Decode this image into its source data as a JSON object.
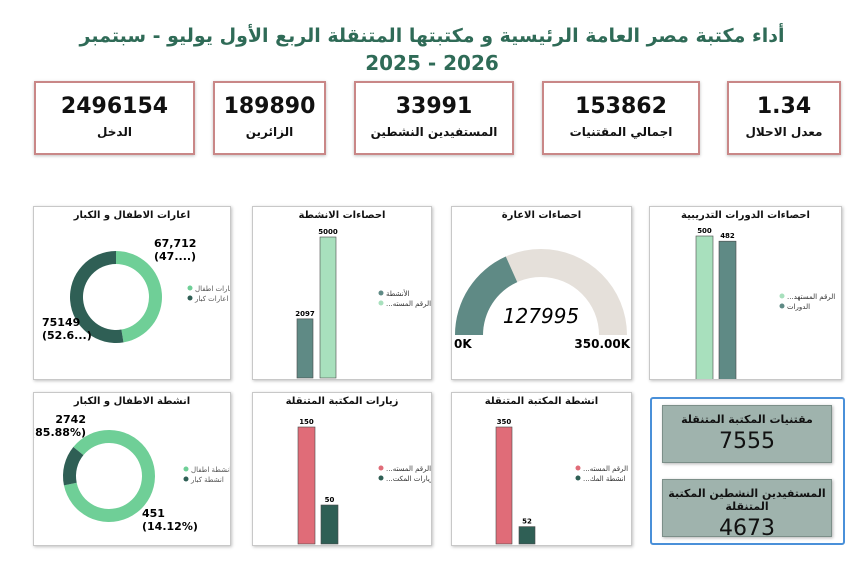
{
  "header": {
    "title_line1": "أداء مكتبة مصر العامة الرئيسية و مكتبتها المتنقلة الربع الأول يوليو - سبتمبر",
    "title_line2": "2025 - 2026"
  },
  "kpis": {
    "income": {
      "value": "2496154",
      "label": "الدخل"
    },
    "visitors": {
      "value": "189890",
      "label": "الزائرين"
    },
    "active_beneficiaries": {
      "value": "33991",
      "label": "المستفيدين النشطين"
    },
    "total_holdings": {
      "value": "153862",
      "label": "اجمالي المقتنيات"
    },
    "replacement_rate": {
      "value": "1.34",
      "label": "معدل الاحلال"
    }
  },
  "mobile_library": {
    "holdings": {
      "label": "مقتنيات المكتبة المتنقلة",
      "value": "7555"
    },
    "active_beneficiaries": {
      "label": "المستفيدين النشطين المكتبة المتنقلة",
      "value": "4673"
    }
  },
  "chart_data": [
    {
      "id": "loans_children_adults",
      "type": "pie",
      "title": "اعارات الاطفال و الكبار",
      "legend": [
        "اعارات اطفال",
        "اعارات كبار"
      ],
      "slices": [
        {
          "name": "اعارات اطفال",
          "value": 67712,
          "label": "67,712",
          "pct_label": "(47....)",
          "color": "#6fcf97"
        },
        {
          "name": "اعارات كبار",
          "value": 75149,
          "label": "75149",
          "pct_label": "(52.6...)",
          "color": "#2f5f55"
        }
      ]
    },
    {
      "id": "activities_stats",
      "type": "bar",
      "title": "احصاءات الانشطة",
      "legend": [
        "الأنشطة",
        "...الرقم المسته"
      ],
      "bars": [
        {
          "name": "الأنشطة",
          "value": 2097,
          "label": "2097",
          "color": "#5f8a85"
        },
        {
          "name": "الرقم المستهدف",
          "value": 5000,
          "label": "5000",
          "color": "#a8e0bd"
        }
      ],
      "ylim": [
        0,
        5000
      ]
    },
    {
      "id": "loans_gauge",
      "type": "gauge",
      "title": "احصاءات الاعارة",
      "value": 127995,
      "value_label": "127995",
      "min_label": "0K",
      "max_label": "350.00K",
      "range": [
        0,
        350000
      ],
      "color": "#5f8a85"
    },
    {
      "id": "training_courses",
      "type": "bar",
      "title": "احصاءات الدورات التدريبية",
      "legend": [
        "...الرقم المستهد",
        "الدورات"
      ],
      "bars": [
        {
          "name": "الرقم المستهدف",
          "value": 500,
          "label": "500",
          "color": "#a8e0bd"
        },
        {
          "name": "الدورات",
          "value": 482,
          "label": "482",
          "color": "#5f8a85"
        }
      ],
      "ylim": [
        0,
        500
      ]
    },
    {
      "id": "activities_children_adults",
      "type": "pie",
      "title": "انشطة الاطفال و الكبار",
      "legend": [
        "انشطة اطفال",
        "انشطة كبار"
      ],
      "slices": [
        {
          "name": "انشطة اطفال",
          "value": 2742,
          "label": "2742",
          "pct_label": "(85.88%)",
          "color": "#6fcf97"
        },
        {
          "name": "انشطة كبار",
          "value": 451,
          "label": "451",
          "pct_label": "(14.12%)",
          "color": "#2f5f55"
        }
      ]
    },
    {
      "id": "mobile_visits",
      "type": "bar",
      "title": "زيارات المكتبة المتنقلة",
      "legend": [
        "...الرقم المسته",
        "...زيارات المكت"
      ],
      "bars": [
        {
          "name": "الرقم المستهدف",
          "value": 150,
          "label": "150",
          "color": "#e06c78"
        },
        {
          "name": "زيارات المكتبة",
          "value": 50,
          "label": "50",
          "color": "#2f5f55"
        }
      ],
      "ylim": [
        0,
        150
      ]
    },
    {
      "id": "mobile_activities",
      "type": "bar",
      "title": "انشطة المكتبة المتنقلة",
      "legend": [
        "...الرقم المسته",
        "...انشطة المك"
      ],
      "bars": [
        {
          "name": "الرقم المستهدف",
          "value": 350,
          "label": "350",
          "color": "#e06c78"
        },
        {
          "name": "انشطة المكتبة",
          "value": 52,
          "label": "52",
          "color": "#2f5f55"
        }
      ],
      "ylim": [
        0,
        350
      ]
    }
  ]
}
